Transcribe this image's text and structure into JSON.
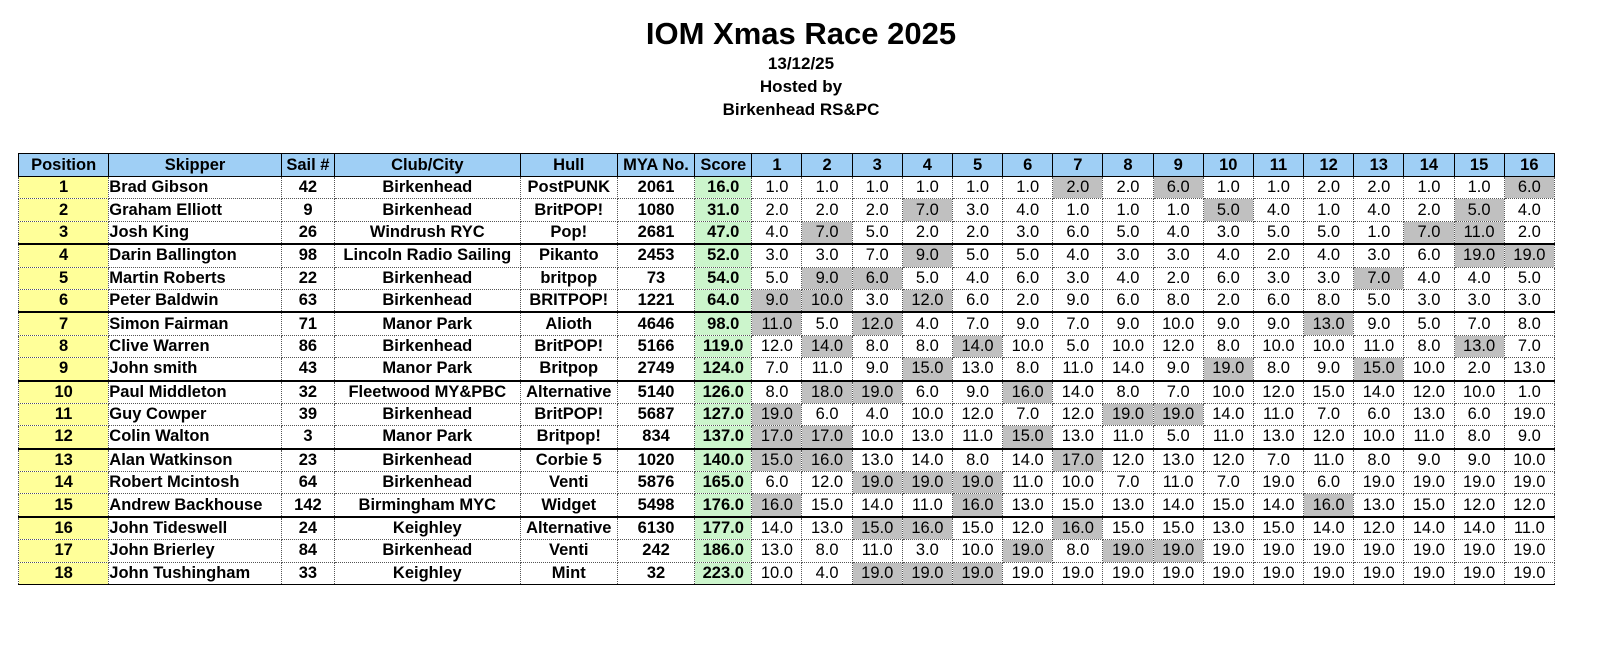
{
  "event": {
    "title": "IOM Xmas Race 2025",
    "date": "13/12/25",
    "hosted_label": "Hosted by",
    "host": "Birkenhead RS&PC"
  },
  "table": {
    "columns": [
      "Position",
      "Skipper",
      "Sail #",
      "Club/City",
      "Hull",
      "MYA No.",
      "Score",
      "1",
      "2",
      "3",
      "4",
      "5",
      "6",
      "7",
      "8",
      "9",
      "10",
      "11",
      "12",
      "13",
      "14",
      "15",
      "16"
    ],
    "rows": [
      {
        "pos": "1",
        "skipper": "Brad Gibson",
        "sail": "42",
        "club": "Birkenhead",
        "hull": "PostPUNK",
        "mya": "2061",
        "score": "16.0",
        "races": [
          "1.0",
          "1.0",
          "1.0",
          "1.0",
          "1.0",
          "1.0",
          "2.0",
          "2.0",
          "6.0",
          "1.0",
          "1.0",
          "2.0",
          "2.0",
          "1.0",
          "1.0",
          "6.0"
        ],
        "drops": [
          6,
          8,
          15
        ],
        "group_start": false
      },
      {
        "pos": "2",
        "skipper": "Graham Elliott",
        "sail": "9",
        "club": "Birkenhead",
        "hull": "BritPOP!",
        "mya": "1080",
        "score": "31.0",
        "races": [
          "2.0",
          "2.0",
          "2.0",
          "7.0",
          "3.0",
          "4.0",
          "1.0",
          "1.0",
          "1.0",
          "5.0",
          "4.0",
          "1.0",
          "4.0",
          "2.0",
          "5.0",
          "4.0"
        ],
        "drops": [
          3,
          9,
          14
        ],
        "group_start": false
      },
      {
        "pos": "3",
        "skipper": "Josh King",
        "sail": "26",
        "club": "Windrush RYC",
        "hull": "Pop!",
        "mya": "2681",
        "score": "47.0",
        "races": [
          "4.0",
          "7.0",
          "5.0",
          "2.0",
          "2.0",
          "3.0",
          "6.0",
          "5.0",
          "4.0",
          "3.0",
          "5.0",
          "5.0",
          "1.0",
          "7.0",
          "11.0",
          "2.0"
        ],
        "drops": [
          1,
          13,
          14
        ],
        "group_start": false
      },
      {
        "pos": "4",
        "skipper": "Darin Ballington",
        "sail": "98",
        "club": "Lincoln Radio Sailing",
        "hull": "Pikanto",
        "mya": "2453",
        "score": "52.0",
        "races": [
          "3.0",
          "3.0",
          "7.0",
          "9.0",
          "5.0",
          "5.0",
          "4.0",
          "3.0",
          "3.0",
          "4.0",
          "2.0",
          "4.0",
          "3.0",
          "6.0",
          "19.0",
          "19.0"
        ],
        "drops": [
          3,
          14,
          15
        ],
        "group_start": true
      },
      {
        "pos": "5",
        "skipper": "Martin Roberts",
        "sail": "22",
        "club": "Birkenhead",
        "hull": "britpop",
        "mya": "73",
        "score": "54.0",
        "races": [
          "5.0",
          "9.0",
          "6.0",
          "5.0",
          "4.0",
          "6.0",
          "3.0",
          "4.0",
          "2.0",
          "6.0",
          "3.0",
          "3.0",
          "7.0",
          "4.0",
          "4.0",
          "5.0"
        ],
        "drops": [
          1,
          2,
          12
        ],
        "group_start": false
      },
      {
        "pos": "6",
        "skipper": "Peter Baldwin",
        "sail": "63",
        "club": "Birkenhead",
        "hull": "BRITPOP!",
        "mya": "1221",
        "score": "64.0",
        "races": [
          "9.0",
          "10.0",
          "3.0",
          "12.0",
          "6.0",
          "2.0",
          "9.0",
          "6.0",
          "8.0",
          "2.0",
          "6.0",
          "8.0",
          "5.0",
          "3.0",
          "3.0",
          "3.0"
        ],
        "drops": [
          0,
          1,
          3
        ],
        "group_start": false
      },
      {
        "pos": "7",
        "skipper": "Simon Fairman",
        "sail": "71",
        "club": "Manor Park",
        "hull": "Alioth",
        "mya": "4646",
        "score": "98.0",
        "races": [
          "11.0",
          "5.0",
          "12.0",
          "4.0",
          "7.0",
          "9.0",
          "7.0",
          "9.0",
          "10.0",
          "9.0",
          "9.0",
          "13.0",
          "9.0",
          "5.0",
          "7.0",
          "8.0"
        ],
        "drops": [
          0,
          2,
          11
        ],
        "group_start": true
      },
      {
        "pos": "8",
        "skipper": "Clive Warren",
        "sail": "86",
        "club": "Birkenhead",
        "hull": "BritPOP!",
        "mya": "5166",
        "score": "119.0",
        "races": [
          "12.0",
          "14.0",
          "8.0",
          "8.0",
          "14.0",
          "10.0",
          "5.0",
          "10.0",
          "12.0",
          "8.0",
          "10.0",
          "10.0",
          "11.0",
          "8.0",
          "13.0",
          "7.0"
        ],
        "drops": [
          1,
          4,
          14
        ],
        "group_start": false
      },
      {
        "pos": "9",
        "skipper": "John smith",
        "sail": "43",
        "club": "Manor Park",
        "hull": "Britpop",
        "mya": "2749",
        "score": "124.0",
        "races": [
          "7.0",
          "11.0",
          "9.0",
          "15.0",
          "13.0",
          "8.0",
          "11.0",
          "14.0",
          "9.0",
          "19.0",
          "8.0",
          "9.0",
          "15.0",
          "10.0",
          "2.0",
          "13.0"
        ],
        "drops": [
          3,
          9,
          12
        ],
        "group_start": false
      },
      {
        "pos": "10",
        "skipper": "Paul Middleton",
        "sail": "32",
        "club": "Fleetwood MY&PBC",
        "hull": "Alternative",
        "mya": "5140",
        "score": "126.0",
        "races": [
          "8.0",
          "18.0",
          "19.0",
          "6.0",
          "9.0",
          "16.0",
          "14.0",
          "8.0",
          "7.0",
          "10.0",
          "12.0",
          "15.0",
          "14.0",
          "12.0",
          "10.0",
          "1.0"
        ],
        "drops": [
          1,
          2,
          5
        ],
        "group_start": true
      },
      {
        "pos": "11",
        "skipper": "Guy Cowper",
        "sail": "39",
        "club": "Birkenhead",
        "hull": "BritPOP!",
        "mya": "5687",
        "score": "127.0",
        "races": [
          "19.0",
          "6.0",
          "4.0",
          "10.0",
          "12.0",
          "7.0",
          "12.0",
          "19.0",
          "19.0",
          "14.0",
          "11.0",
          "7.0",
          "6.0",
          "13.0",
          "6.0",
          "19.0"
        ],
        "drops": [
          0,
          7,
          8
        ],
        "group_start": false
      },
      {
        "pos": "12",
        "skipper": "Colin Walton",
        "sail": "3",
        "club": "Manor Park",
        "hull": "Britpop!",
        "mya": "834",
        "score": "137.0",
        "races": [
          "17.0",
          "17.0",
          "10.0",
          "13.0",
          "11.0",
          "15.0",
          "13.0",
          "11.0",
          "5.0",
          "11.0",
          "13.0",
          "12.0",
          "10.0",
          "11.0",
          "8.0",
          "9.0"
        ],
        "drops": [
          0,
          1,
          5
        ],
        "group_start": false
      },
      {
        "pos": "13",
        "skipper": "Alan Watkinson",
        "sail": "23",
        "club": "Birkenhead",
        "hull": "Corbie 5",
        "mya": "1020",
        "score": "140.0",
        "races": [
          "15.0",
          "16.0",
          "13.0",
          "14.0",
          "8.0",
          "14.0",
          "17.0",
          "12.0",
          "13.0",
          "12.0",
          "7.0",
          "11.0",
          "8.0",
          "9.0",
          "9.0",
          "10.0"
        ],
        "drops": [
          0,
          1,
          6
        ],
        "group_start": true
      },
      {
        "pos": "14",
        "skipper": "Robert Mcintosh",
        "sail": "64",
        "club": "Birkenhead",
        "hull": "Venti",
        "mya": "5876",
        "score": "165.0",
        "races": [
          "6.0",
          "12.0",
          "19.0",
          "19.0",
          "19.0",
          "11.0",
          "10.0",
          "7.0",
          "11.0",
          "7.0",
          "19.0",
          "6.0",
          "19.0",
          "19.0",
          "19.0",
          "19.0"
        ],
        "drops": [
          2,
          3,
          4
        ],
        "group_start": false
      },
      {
        "pos": "15",
        "skipper": "Andrew Backhouse",
        "sail": "142",
        "club": "Birmingham MYC",
        "hull": "Widget",
        "mya": "5498",
        "score": "176.0",
        "races": [
          "16.0",
          "15.0",
          "14.0",
          "11.0",
          "16.0",
          "13.0",
          "15.0",
          "13.0",
          "14.0",
          "15.0",
          "14.0",
          "16.0",
          "13.0",
          "15.0",
          "12.0",
          "12.0"
        ],
        "drops": [
          0,
          4,
          11
        ],
        "group_start": false
      },
      {
        "pos": "16",
        "skipper": "John Tideswell",
        "sail": "24",
        "club": "Keighley",
        "hull": "Alternative",
        "mya": "6130",
        "score": "177.0",
        "races": [
          "14.0",
          "13.0",
          "15.0",
          "16.0",
          "15.0",
          "12.0",
          "16.0",
          "15.0",
          "15.0",
          "13.0",
          "15.0",
          "14.0",
          "12.0",
          "14.0",
          "14.0",
          "11.0"
        ],
        "drops": [
          2,
          3,
          6
        ],
        "group_start": true
      },
      {
        "pos": "17",
        "skipper": "John Brierley",
        "sail": "84",
        "club": "Birkenhead",
        "hull": "Venti",
        "mya": "242",
        "score": "186.0",
        "races": [
          "13.0",
          "8.0",
          "11.0",
          "3.0",
          "10.0",
          "19.0",
          "8.0",
          "19.0",
          "19.0",
          "19.0",
          "19.0",
          "19.0",
          "19.0",
          "19.0",
          "19.0",
          "19.0"
        ],
        "drops": [
          5,
          7,
          8
        ],
        "group_start": false
      },
      {
        "pos": "18",
        "skipper": "John Tushingham",
        "sail": "33",
        "club": "Keighley",
        "hull": "Mint",
        "mya": "32",
        "score": "223.0",
        "races": [
          "10.0",
          "4.0",
          "19.0",
          "19.0",
          "19.0",
          "19.0",
          "19.0",
          "19.0",
          "19.0",
          "19.0",
          "19.0",
          "19.0",
          "19.0",
          "19.0",
          "19.0",
          "19.0"
        ],
        "drops": [
          2,
          3,
          4
        ],
        "group_start": false
      }
    ]
  },
  "colors": {
    "header_bg": "#9fcff5",
    "position_bg": "#ffff99",
    "score_bg": "#ccf5cc",
    "dropped_bg": "#c0c0c0"
  }
}
